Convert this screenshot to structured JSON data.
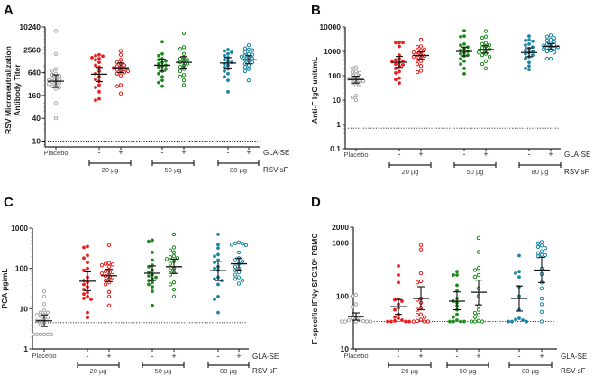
{
  "figure": {
    "row_labels": {
      "adjuvant": "GLA-SE",
      "antigen": "RSV sF"
    },
    "placebo_label": "Placebo",
    "sign_minus": "-",
    "sign_plus": "+",
    "dose_labels": [
      "20 µg",
      "50 µg",
      "80 µg"
    ],
    "colors": {
      "placebo": "#a6a6a6",
      "20ug": "#ee1c1c",
      "50ug": "#1f8a1f",
      "80ug": "#1a85a3",
      "errorbar": "#111111"
    }
  },
  "chart_data": [
    {
      "panel": "A",
      "type": "scatter",
      "scale": "log",
      "ylabel_lines": [
        "RSV Microneutralization",
        "Antibody Titer"
      ],
      "yticks": [
        10,
        40,
        160,
        640,
        2560,
        10240
      ],
      "ytick_labels": [
        "10",
        "40",
        "160",
        "640",
        "2560",
        "10240"
      ],
      "ylim": [
        7,
        10240
      ],
      "threshold": 10,
      "groups": [
        {
          "name": "Placebo",
          "color": "placebo",
          "filled": false,
          "mean": 380,
          "err": [
            260,
            560
          ],
          "values": [
            8000,
            2000,
            800,
            720,
            600,
            560,
            520,
            480,
            450,
            420,
            400,
            380,
            360,
            340,
            320,
            300,
            280,
            260,
            240,
            100,
            40
          ]
        },
        {
          "name": "20 µg -",
          "color": "20ug",
          "filled": true,
          "mean": 580,
          "err": [
            370,
            880
          ],
          "values": [
            1900,
            1800,
            1750,
            1600,
            1500,
            1400,
            1200,
            1000,
            900,
            700,
            600,
            500,
            420,
            380,
            300,
            260,
            200,
            130,
            120
          ]
        },
        {
          "name": "20 µg +",
          "color": "20ug",
          "filled": false,
          "mean": 860,
          "err": [
            640,
            1150
          ],
          "values": [
            2400,
            1900,
            1400,
            1200,
            1100,
            1000,
            950,
            900,
            850,
            800,
            760,
            720,
            700,
            650,
            600,
            540,
            300,
            280,
            180
          ]
        },
        {
          "name": "50 µg -",
          "color": "50ug",
          "filled": true,
          "mean": 1000,
          "err": [
            700,
            1450
          ],
          "values": [
            4200,
            2000,
            1800,
            1500,
            1400,
            1300,
            1200,
            1100,
            1000,
            950,
            900,
            800,
            700,
            600,
            500,
            400,
            350,
            280
          ]
        },
        {
          "name": "50 µg +",
          "color": "50ug",
          "filled": false,
          "mean": 1200,
          "err": [
            850,
            1700
          ],
          "values": [
            7000,
            3000,
            2700,
            2000,
            1600,
            1500,
            1400,
            1300,
            1200,
            1100,
            1000,
            900,
            800,
            700,
            550,
            500,
            400,
            300
          ]
        },
        {
          "name": "80 µg -",
          "color": "80ug",
          "filled": true,
          "mean": 1150,
          "err": [
            850,
            1600
          ],
          "values": [
            2600,
            2400,
            2200,
            2000,
            1800,
            1600,
            1400,
            1300,
            1200,
            1100,
            1000,
            900,
            800,
            700,
            600,
            500,
            400,
            200
          ]
        },
        {
          "name": "80 µg +",
          "color": "80ug",
          "filled": false,
          "mean": 1400,
          "err": [
            1100,
            1800
          ],
          "values": [
            3400,
            2800,
            2600,
            2500,
            2200,
            2000,
            1900,
            1800,
            1700,
            1600,
            1500,
            1400,
            1300,
            1200,
            1100,
            1000,
            900,
            800,
            700,
            400
          ]
        }
      ]
    },
    {
      "panel": "B",
      "type": "scatter",
      "scale": "log",
      "ylabel_lines": [
        "Anti-F IgG unit/mL"
      ],
      "yticks": [
        0.1,
        1,
        10,
        100,
        1000,
        10000
      ],
      "ytick_labels": [
        "0.1",
        "1",
        "10",
        "100",
        "1000",
        "10000"
      ],
      "ylim": [
        0.1,
        10000
      ],
      "threshold": 0.7,
      "groups": [
        {
          "name": "Placebo",
          "color": "placebo",
          "filled": false,
          "mean": 70,
          "err": [
            50,
            95
          ],
          "values": [
            220,
            200,
            150,
            140,
            130,
            110,
            100,
            90,
            80,
            75,
            70,
            65,
            60,
            55,
            50,
            45,
            40,
            15,
            13,
            10
          ]
        },
        {
          "name": "20 µg -",
          "color": "20ug",
          "filled": true,
          "mean": 360,
          "err": [
            220,
            620
          ],
          "values": [
            2300,
            2300,
            2300,
            1600,
            700,
            500,
            450,
            400,
            380,
            350,
            300,
            280,
            250,
            200,
            150,
            130,
            80,
            70,
            50
          ]
        },
        {
          "name": "20 µg +",
          "color": "20ug",
          "filled": false,
          "mean": 680,
          "err": [
            470,
            950
          ],
          "values": [
            3000,
            1600,
            1500,
            1200,
            1100,
            1000,
            900,
            800,
            700,
            650,
            600,
            550,
            450,
            400,
            300,
            250,
            160,
            140
          ]
        },
        {
          "name": "50 µg -",
          "color": "50ug",
          "filled": true,
          "mean": 1000,
          "err": [
            650,
            1500
          ],
          "values": [
            7000,
            4200,
            4000,
            2000,
            1800,
            1500,
            1300,
            1100,
            1000,
            900,
            800,
            700,
            650,
            500,
            400,
            300,
            200,
            120
          ]
        },
        {
          "name": "50 µg +",
          "color": "50ug",
          "filled": false,
          "mean": 1200,
          "err": [
            850,
            1700
          ],
          "values": [
            6800,
            4000,
            3600,
            2200,
            2000,
            1800,
            1600,
            1400,
            1200,
            1100,
            1000,
            900,
            800,
            700,
            600,
            400,
            300,
            200
          ]
        },
        {
          "name": "80 µg -",
          "color": "80ug",
          "filled": true,
          "mean": 900,
          "err": [
            600,
            1400
          ],
          "values": [
            4200,
            3000,
            2800,
            2600,
            2000,
            1800,
            1500,
            1300,
            1100,
            1000,
            900,
            800,
            700,
            600,
            500,
            350,
            250,
            200,
            180
          ]
        },
        {
          "name": "80 µg +",
          "color": "80ug",
          "filled": false,
          "mean": 1600,
          "err": [
            1200,
            2100
          ],
          "values": [
            4500,
            4000,
            3500,
            3000,
            2800,
            2500,
            2200,
            2000,
            1800,
            1700,
            1600,
            1500,
            1400,
            1300,
            1200,
            1100,
            1000,
            900,
            500,
            500
          ]
        }
      ]
    },
    {
      "panel": "C",
      "type": "scatter",
      "scale": "log",
      "ylabel_lines": [
        "PCA µg/mL"
      ],
      "yticks": [
        1,
        10,
        100,
        1000
      ],
      "ytick_labels": [
        "1",
        "10",
        "100",
        "1000"
      ],
      "ylim": [
        1,
        1000
      ],
      "threshold": 4.5,
      "groups": [
        {
          "name": "Placebo",
          "color": "placebo",
          "filled": false,
          "mean": 5,
          "err": [
            3.6,
            7
          ],
          "values": [
            27,
            20,
            13,
            9,
            8,
            8,
            7,
            7,
            6.5,
            6,
            5.5,
            5,
            5,
            4.5,
            4,
            2.3,
            2.3,
            2.3,
            2.3,
            2.3,
            2.3
          ]
        },
        {
          "name": "20 µg -",
          "color": "20ug",
          "filled": true,
          "mean": 48,
          "err": [
            28,
            82
          ],
          "values": [
            350,
            330,
            210,
            180,
            140,
            100,
            90,
            60,
            50,
            45,
            40,
            35,
            30,
            25,
            23,
            20,
            18,
            17,
            8,
            6
          ]
        },
        {
          "name": "20 µg +",
          "color": "20ug",
          "filled": false,
          "mean": 66,
          "err": [
            47,
            95
          ],
          "values": [
            380,
            135,
            130,
            125,
            120,
            110,
            90,
            85,
            80,
            75,
            70,
            65,
            60,
            55,
            50,
            45,
            40,
            26,
            20,
            12
          ]
        },
        {
          "name": "50 µg -",
          "color": "50ug",
          "filled": true,
          "mean": 76,
          "err": [
            50,
            115
          ],
          "values": [
            500,
            470,
            250,
            160,
            120,
            110,
            90,
            80,
            70,
            65,
            60,
            55,
            50,
            45,
            40,
            35,
            27,
            12
          ]
        },
        {
          "name": "50 µg +",
          "color": "50ug",
          "filled": false,
          "mean": 110,
          "err": [
            75,
            170
          ],
          "values": [
            700,
            330,
            280,
            250,
            200,
            190,
            180,
            170,
            150,
            130,
            100,
            90,
            80,
            70,
            45,
            40,
            30,
            20
          ]
        },
        {
          "name": "80 µg -",
          "color": "80ug",
          "filled": true,
          "mean": 88,
          "err": [
            50,
            150
          ],
          "values": [
            700,
            390,
            320,
            220,
            200,
            160,
            140,
            110,
            100,
            90,
            60,
            55,
            50,
            40,
            20,
            17,
            8
          ]
        },
        {
          "name": "80 µg +",
          "color": "80ug",
          "filled": false,
          "mean": 130,
          "err": [
            90,
            180
          ],
          "values": [
            440,
            420,
            410,
            390,
            380,
            250,
            180,
            160,
            150,
            130,
            110,
            100,
            90,
            80,
            70,
            60,
            55,
            50,
            42
          ]
        }
      ]
    },
    {
      "panel": "D",
      "type": "scatter",
      "scale": "log",
      "ylabel_lines": [
        "F-specific IFNγ SFC/10⁶ PBMC"
      ],
      "yticks": [
        10,
        100,
        1000,
        2000
      ],
      "ytick_labels": [
        "10",
        "100",
        "1000",
        "2000"
      ],
      "ylim": [
        10,
        2000
      ],
      "threshold": 33,
      "groups": [
        {
          "name": "Placebo",
          "color": "placebo",
          "filled": false,
          "mean": 41,
          "err": [
            35,
            48
          ],
          "values": [
            105,
            100,
            70,
            62,
            40,
            38,
            36,
            35,
            34,
            34,
            33,
            33,
            33,
            33,
            33,
            33
          ]
        },
        {
          "name": "20 µg -",
          "color": "20ug",
          "filled": true,
          "mean": 63,
          "err": [
            45,
            86
          ],
          "values": [
            370,
            250,
            180,
            88,
            85,
            80,
            70,
            60,
            55,
            45,
            40,
            38,
            35,
            34,
            33,
            33,
            33,
            33
          ]
        },
        {
          "name": "20 µg +",
          "color": "20ug",
          "filled": false,
          "mean": 90,
          "err": [
            55,
            150
          ],
          "values": [
            920,
            760,
            270,
            190,
            180,
            90,
            85,
            75,
            60,
            55,
            45,
            44,
            40,
            36,
            34,
            33,
            33,
            33
          ]
        },
        {
          "name": "50 µg -",
          "color": "50ug",
          "filled": true,
          "mean": 80,
          "err": [
            55,
            120
          ],
          "values": [
            290,
            250,
            250,
            160,
            125,
            90,
            80,
            75,
            65,
            55,
            45,
            40,
            35,
            33,
            33,
            33,
            33
          ]
        },
        {
          "name": "50 µg +",
          "color": "50ug",
          "filled": false,
          "mean": 118,
          "err": [
            68,
            200
          ],
          "values": [
            1250,
            680,
            340,
            310,
            250,
            230,
            140,
            100,
            65,
            55,
            48,
            44,
            40,
            34,
            33,
            33,
            33
          ]
        },
        {
          "name": "80 µg -",
          "color": "80ug",
          "filled": true,
          "mean": 90,
          "err": [
            52,
            155
          ],
          "values": [
            580,
            290,
            270,
            230,
            150,
            100,
            55,
            38,
            36,
            35,
            33,
            33,
            33
          ]
        },
        {
          "name": "80 µg +",
          "color": "80ug",
          "filled": false,
          "mean": 310,
          "err": [
            180,
            540
          ],
          "values": [
            1050,
            1000,
            900,
            850,
            800,
            700,
            650,
            600,
            590,
            560,
            330,
            260,
            180,
            140,
            90,
            70,
            50,
            33
          ]
        }
      ]
    }
  ]
}
